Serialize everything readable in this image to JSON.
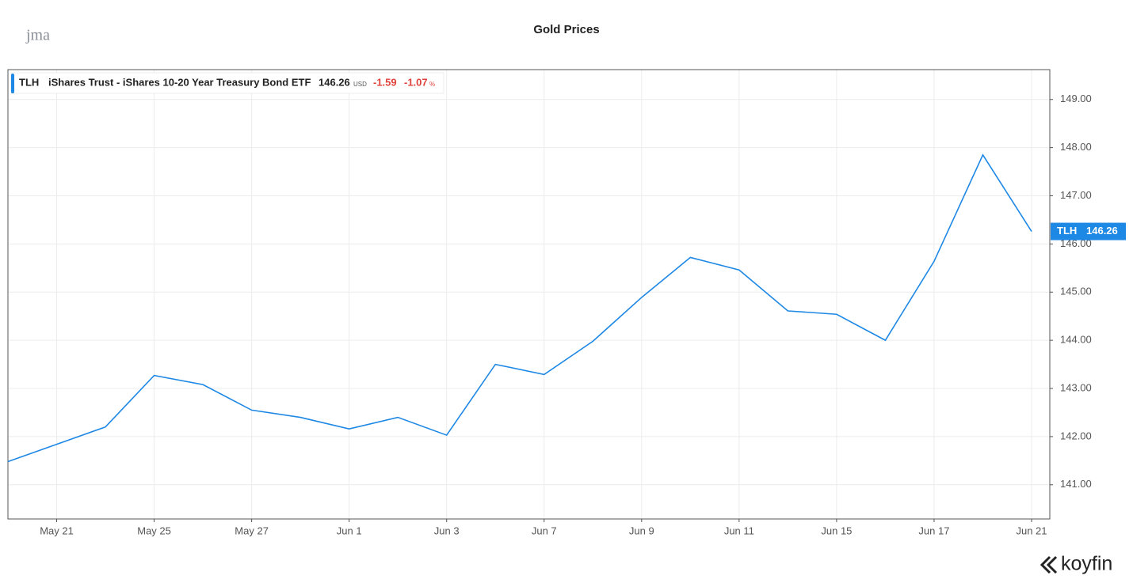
{
  "branding": {
    "top_left": "jma",
    "bottom_right": "koyfin"
  },
  "chart_data": {
    "type": "line",
    "title": "Gold Prices",
    "legend": {
      "ticker": "TLH",
      "full_name": "iShares Trust - iShares 10-20 Year Treasury Bond ETF",
      "last_price": 146.26,
      "currency": "USD",
      "change": -1.59,
      "change_pct": -1.07,
      "pct_sign": "%"
    },
    "categories": [
      null,
      "May 21",
      null,
      "May 25",
      null,
      "May 27",
      null,
      "Jun 1",
      null,
      "Jun 3",
      null,
      "Jun 7",
      null,
      "Jun 9",
      null,
      "Jun 11",
      null,
      "Jun 15",
      null,
      "Jun 17",
      null,
      "Jun 21"
    ],
    "series": [
      {
        "name": "TLH",
        "color": "#1e88e5",
        "values": [
          141.48,
          141.84,
          142.2,
          143.27,
          143.08,
          142.55,
          142.4,
          142.16,
          142.4,
          142.03,
          143.5,
          143.29,
          143.98,
          144.89,
          145.72,
          145.46,
          144.61,
          144.54,
          144.0,
          145.64,
          147.85,
          146.26
        ]
      }
    ],
    "ylim": [
      140.29,
      149.62
    ],
    "yticks": [
      {
        "value": 141,
        "label": "141.00"
      },
      {
        "value": 142,
        "label": "142.00"
      },
      {
        "value": 143,
        "label": "143.00"
      },
      {
        "value": 144,
        "label": "144.00"
      },
      {
        "value": 145,
        "label": "145.00"
      },
      {
        "value": 146,
        "label": "146.00"
      },
      {
        "value": 147,
        "label": "147.00"
      },
      {
        "value": 148,
        "label": "148.00"
      },
      {
        "value": 149,
        "label": "149.00"
      }
    ],
    "grid": true
  }
}
